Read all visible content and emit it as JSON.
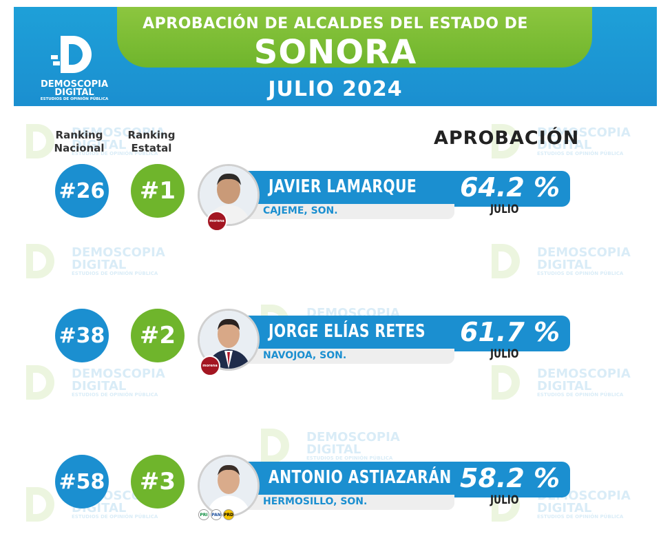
{
  "header": {
    "line1": "APROBACIÓN DE ALCALDES DEL ESTADO DE",
    "line2": "SONORA",
    "line3": "JULIO 2024",
    "logo_line1": "DEMOSCOPIA",
    "logo_line2": "DIGITAL",
    "logo_line3": "ESTUDIOS DE OPINIÓN PÚBLICA"
  },
  "watermark": {
    "line1": "DEMOSCOPIA",
    "line2": "DIGITAL",
    "line3": "ESTUDIOS DE OPINIÓN PÚBLICA"
  },
  "columns": {
    "ranking_nacional": "Ranking\nNacional",
    "ranking_estatal": "Ranking\nEstatal",
    "aprobacion": "APROBACIÓN"
  },
  "rows": [
    {
      "nacional": "#26",
      "estatal": "#1",
      "name": "JAVIER LAMARQUE",
      "city": "CAJEME, SON.",
      "pct": "64.2 %",
      "month": "JULIO",
      "party": "morena"
    },
    {
      "nacional": "#38",
      "estatal": "#2",
      "name": "JORGE ELÍAS RETES",
      "city": "NAVOJOA, SON.",
      "pct": "61.7 %",
      "month": "JULIO",
      "party": "morena"
    },
    {
      "nacional": "#58",
      "estatal": "#3",
      "name": "ANTONIO ASTIAZARÁN",
      "city": "HERMOSILLO, SON.",
      "pct": "58.2 %",
      "month": "JULIO",
      "party": "PRI-PAN-PRD"
    }
  ],
  "colors": {
    "blue": "#1b8fd0",
    "green": "#6fb52c",
    "morena": "#a31622"
  }
}
